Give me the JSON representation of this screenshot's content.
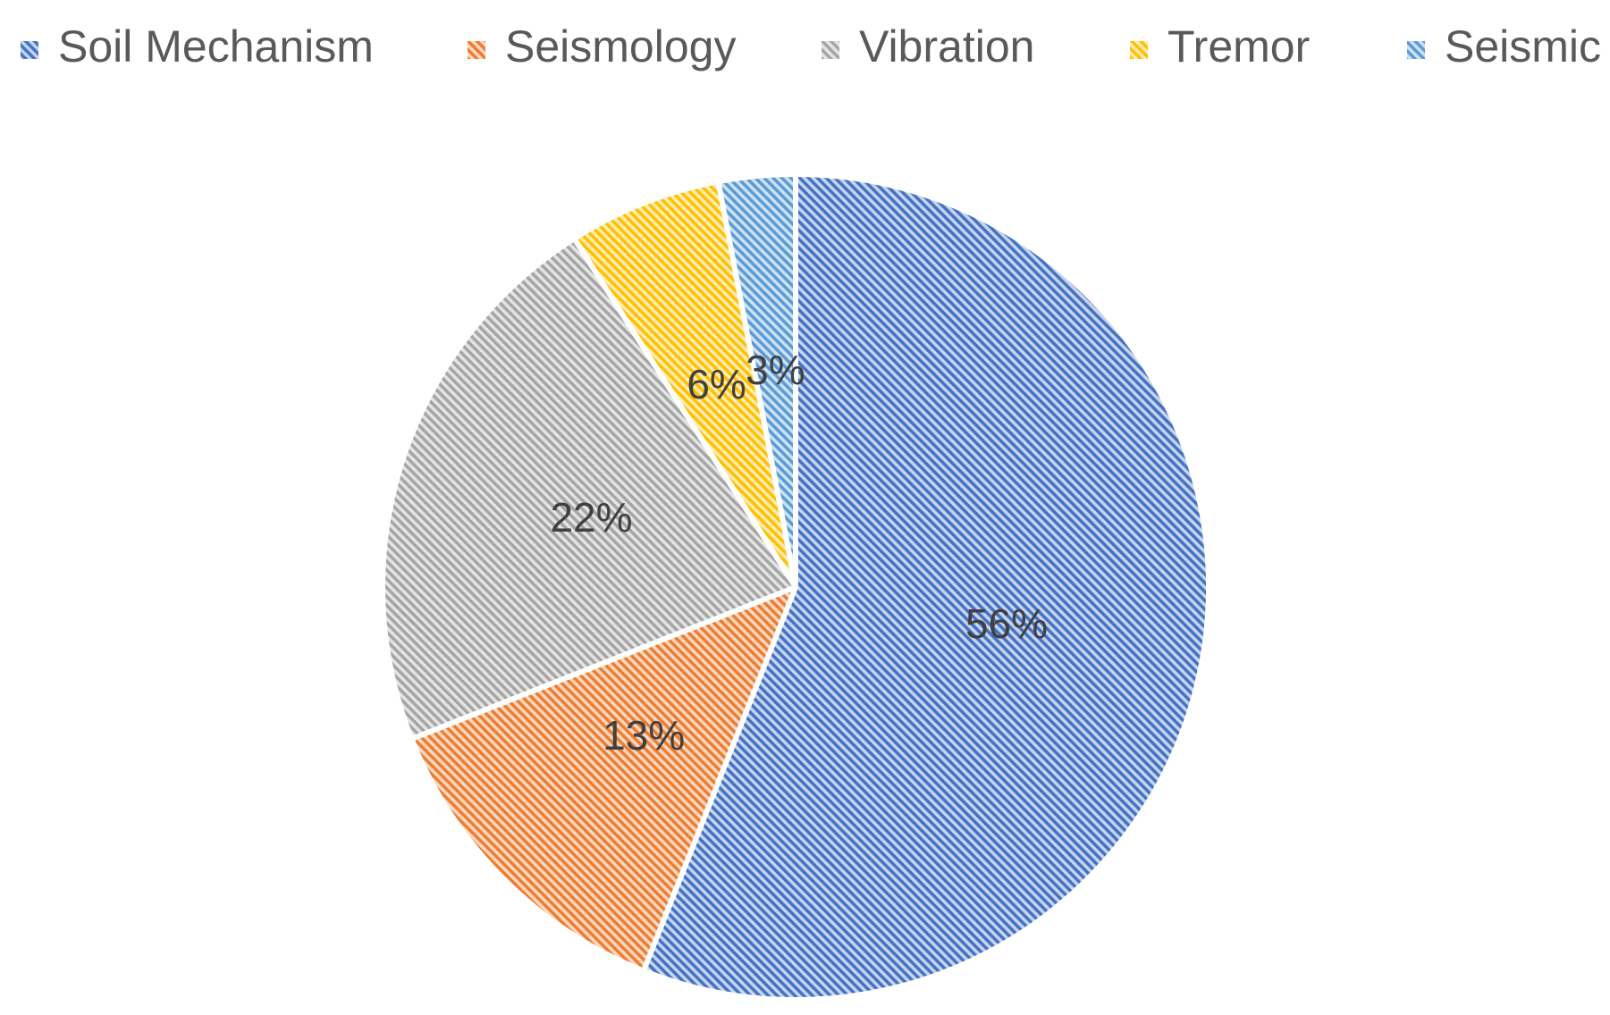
{
  "chart_data": {
    "type": "pie",
    "categories": [
      "Soil Mechanism",
      "Seismology",
      "Vibration",
      "Tremor",
      "Seismic"
    ],
    "values": [
      56,
      13,
      22,
      6,
      3
    ],
    "value_labels": [
      "56%",
      "13%",
      "22%",
      "6%",
      "3%"
    ],
    "colors": [
      "#4472c4",
      "#ed7d31",
      "#a5a5a5",
      "#ffc000",
      "#5b9bd5"
    ],
    "legend": "top"
  }
}
